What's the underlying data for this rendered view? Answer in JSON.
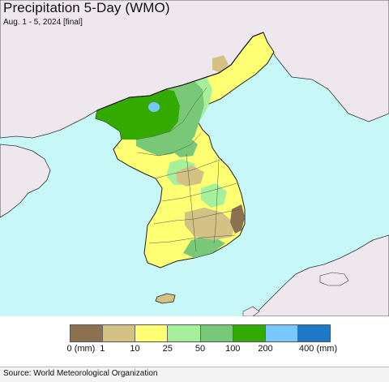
{
  "map": {
    "title": "Precipitation 5-Day (WMO)",
    "subtitle": "Aug. 1 - 5, 2024 [final]",
    "colors": {
      "sea": "#c8f7f7",
      "land_outside": "#eee8ee",
      "border": "#222222"
    }
  },
  "legend": {
    "unit": "(mm)",
    "bins": [
      {
        "color": "#8b7150"
      },
      {
        "color": "#d3c284"
      },
      {
        "color": "#ffff73"
      },
      {
        "color": "#a6f09b"
      },
      {
        "color": "#78c878"
      },
      {
        "color": "#32aa00"
      },
      {
        "color": "#78c8ff"
      },
      {
        "color": "#1e78c8"
      }
    ],
    "ticks": [
      "0 (mm)",
      "1",
      "10",
      "25",
      "50",
      "100",
      "200",
      "400 (mm)"
    ]
  },
  "footer": {
    "source": "Source: World Meteorological Organization"
  }
}
